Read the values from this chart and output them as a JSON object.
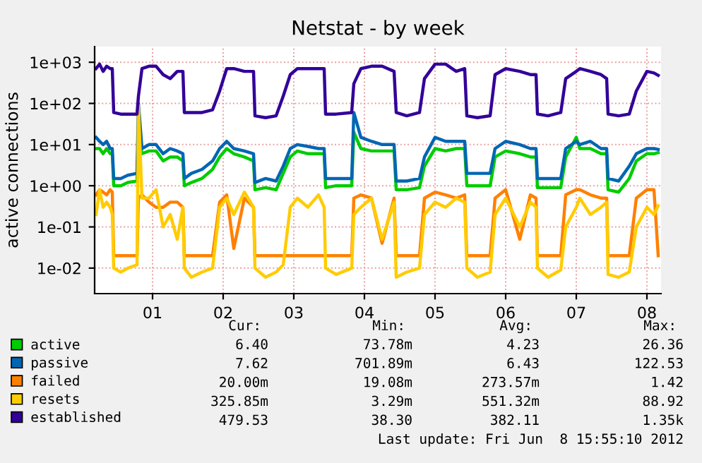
{
  "chart_data": {
    "type": "line",
    "title": "Netstat - by week",
    "ylabel": "active connections",
    "log": "y",
    "grid": true,
    "legend": "bottom",
    "marker": "none",
    "line_style": "solid",
    "x": [
      0.2,
      0.25,
      0.3,
      0.35,
      0.4,
      0.43,
      0.45,
      0.55,
      0.65,
      0.78,
      0.8,
      0.85,
      0.95,
      1.05,
      1.15,
      1.25,
      1.35,
      1.43,
      1.45,
      1.55,
      1.7,
      1.85,
      1.95,
      2.05,
      2.15,
      2.3,
      2.43,
      2.45,
      2.6,
      2.75,
      2.85,
      2.95,
      3.05,
      3.2,
      3.35,
      3.43,
      3.45,
      3.6,
      3.82,
      3.85,
      3.95,
      4.1,
      4.25,
      4.42,
      4.45,
      4.6,
      4.78,
      4.85,
      5.0,
      5.15,
      5.3,
      5.42,
      5.45,
      5.6,
      5.78,
      5.85,
      6.0,
      6.2,
      6.35,
      6.43,
      6.45,
      6.6,
      6.78,
      6.85,
      7.0,
      7.05,
      7.2,
      7.35,
      7.43,
      7.45,
      7.6,
      7.75,
      7.85,
      8.0,
      8.1,
      8.16
    ],
    "xlim": [
      0.18,
      8.2
    ],
    "xticks": [
      {
        "value": 1,
        "label": "01"
      },
      {
        "value": 2,
        "label": "02"
      },
      {
        "value": 3,
        "label": "03"
      },
      {
        "value": 4,
        "label": "04"
      },
      {
        "value": 5,
        "label": "05"
      },
      {
        "value": 6,
        "label": "06"
      },
      {
        "value": 7,
        "label": "07"
      },
      {
        "value": 8,
        "label": "08"
      }
    ],
    "ylim": [
      0.0024,
      2400
    ],
    "yticks": [
      {
        "value": 0.01,
        "label": "1e-02"
      },
      {
        "value": 0.1,
        "label": "1e-01"
      },
      {
        "value": 1,
        "label": "1e+00"
      },
      {
        "value": 10,
        "label": "1e+01"
      },
      {
        "value": 100,
        "label": "1e+02"
      },
      {
        "value": 1000,
        "label": "1e+03"
      }
    ],
    "series": [
      {
        "name": "active",
        "color": "#00cc00",
        "values": [
          8,
          8,
          6,
          8,
          6,
          6,
          1,
          1,
          1.2,
          1.3,
          20,
          6,
          7,
          7,
          4,
          5,
          5,
          4,
          1,
          1.2,
          1.5,
          2.5,
          5,
          8,
          6,
          5,
          4,
          0.8,
          0.9,
          0.8,
          2,
          5,
          7,
          6,
          6,
          6,
          0.9,
          1,
          1,
          20,
          8,
          7,
          7,
          7,
          0.8,
          0.8,
          0.9,
          3,
          8,
          7,
          8,
          8,
          1,
          1,
          1,
          5,
          7,
          6,
          5,
          5,
          0.9,
          0.9,
          0.9,
          5,
          15,
          8,
          8,
          6,
          6,
          0.8,
          0.7,
          1.5,
          4,
          6,
          6,
          6.4
        ]
      },
      {
        "name": "passive",
        "color": "#0066b3",
        "values": [
          15,
          12,
          10,
          12,
          8,
          8,
          1.5,
          1.5,
          1.8,
          2,
          100,
          8,
          10,
          10,
          6,
          8,
          7,
          6,
          1.5,
          2,
          2.5,
          4,
          8,
          12,
          8,
          7,
          6,
          1.2,
          1.5,
          1.3,
          3,
          8,
          10,
          9,
          8,
          8,
          1.5,
          1.5,
          1.5,
          60,
          15,
          12,
          10,
          10,
          1.3,
          1.3,
          1.5,
          5,
          15,
          12,
          12,
          12,
          2,
          2,
          2,
          8,
          12,
          10,
          8,
          8,
          1.5,
          1.5,
          1.5,
          8,
          12,
          10,
          12,
          8,
          8,
          1.5,
          1.3,
          3,
          6,
          8,
          8,
          7.62
        ]
      },
      {
        "name": "failed",
        "color": "#ff8000",
        "values": [
          0.6,
          0.8,
          0.7,
          0.6,
          0.8,
          0.7,
          0.02,
          0.02,
          0.02,
          0.02,
          0.5,
          0.6,
          0.4,
          0.3,
          0.3,
          0.4,
          0.4,
          0.3,
          0.02,
          0.02,
          0.02,
          0.02,
          0.4,
          0.6,
          0.03,
          0.5,
          0.3,
          0.02,
          0.02,
          0.02,
          0.02,
          0.02,
          0.02,
          0.02,
          0.02,
          0.02,
          0.02,
          0.02,
          0.02,
          0.5,
          0.6,
          0.5,
          0.04,
          0.5,
          0.02,
          0.02,
          0.02,
          0.5,
          0.7,
          0.6,
          0.5,
          0.6,
          0.02,
          0.02,
          0.02,
          0.5,
          0.8,
          0.05,
          0.6,
          0.5,
          0.02,
          0.02,
          0.02,
          0.6,
          0.8,
          0.8,
          0.6,
          0.5,
          0.5,
          0.02,
          0.02,
          0.02,
          0.5,
          0.8,
          0.8,
          0.02
        ]
      },
      {
        "name": "resets",
        "color": "#ffcc00",
        "values": [
          0.2,
          0.8,
          0.3,
          0.4,
          0.3,
          0.2,
          0.01,
          0.008,
          0.01,
          0.012,
          88.92,
          0.5,
          0.5,
          0.8,
          0.1,
          0.2,
          0.05,
          0.3,
          0.01,
          0.006,
          0.008,
          0.01,
          0.3,
          0.5,
          0.2,
          0.7,
          0.3,
          0.01,
          0.006,
          0.008,
          0.012,
          0.3,
          0.5,
          0.3,
          0.6,
          0.3,
          0.01,
          0.007,
          0.01,
          0.2,
          0.3,
          0.5,
          0.05,
          0.4,
          0.006,
          0.008,
          0.01,
          0.2,
          0.4,
          0.3,
          0.5,
          0.4,
          0.01,
          0.006,
          0.008,
          0.2,
          0.5,
          0.1,
          0.4,
          0.3,
          0.01,
          0.006,
          0.009,
          0.1,
          0.3,
          0.5,
          0.2,
          0.3,
          0.4,
          0.007,
          0.006,
          0.008,
          0.1,
          0.3,
          0.2,
          0.326
        ]
      },
      {
        "name": "established",
        "color": "#330099",
        "values": [
          700,
          900,
          600,
          800,
          700,
          700,
          60,
          55,
          55,
          55,
          150,
          700,
          800,
          800,
          500,
          400,
          600,
          600,
          60,
          60,
          60,
          70,
          200,
          700,
          700,
          600,
          600,
          50,
          45,
          50,
          150,
          500,
          700,
          700,
          700,
          700,
          55,
          55,
          60,
          300,
          700,
          800,
          800,
          600,
          60,
          50,
          60,
          400,
          900,
          900,
          600,
          700,
          50,
          45,
          50,
          500,
          700,
          600,
          500,
          500,
          55,
          50,
          60,
          400,
          600,
          700,
          600,
          500,
          400,
          55,
          50,
          55,
          200,
          600,
          550,
          480
        ]
      }
    ],
    "annotations": [
      "Cur:",
      "Min:",
      "Avg:",
      "Max:",
      "6.40",
      "73.78m",
      "4.23",
      "26.36",
      "7.62",
      "701.89m",
      "6.43",
      "122.53",
      "20.00m",
      "19.08m",
      "273.57m",
      "1.42",
      "325.85m",
      "3.29m",
      "551.32m",
      "88.92",
      "479.53",
      "38.30",
      "382.11",
      "1.35k",
      "Last update: Fri Jun  8 15:55:10 2012"
    ]
  }
}
